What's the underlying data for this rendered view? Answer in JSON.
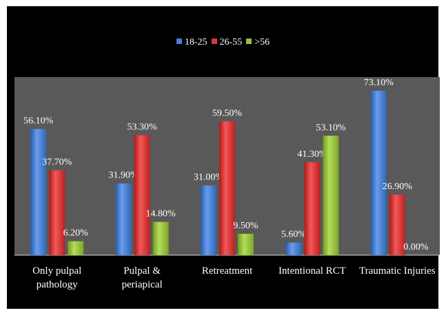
{
  "chart_data": {
    "type": "bar",
    "categories": [
      "Only pulpal pathology",
      "Pulpal & periapical",
      "Retreatment",
      "Intentional RCT",
      "Traumatic Injuries"
    ],
    "category_lines": [
      [
        "Only pulpal",
        "pathology"
      ],
      [
        "Pulpal &",
        "periapical"
      ],
      [
        "Retreatment"
      ],
      [
        "Intentional RCT"
      ],
      [
        "Traumatic Injuries"
      ]
    ],
    "series": [
      {
        "name": "18-25",
        "values": [
          56.1,
          31.9,
          31.0,
          5.6,
          73.1
        ],
        "labels": [
          "56.10%",
          "31.90%",
          "31.00%",
          "5.60%",
          "73.10%"
        ],
        "color": "#4a7fcf"
      },
      {
        "name": "26-55",
        "values": [
          37.7,
          53.3,
          59.5,
          41.3,
          26.9
        ],
        "labels": [
          "37.70%",
          "53.30%",
          "59.50%",
          "41.30%",
          "26.90%"
        ],
        "color": "#d53a3a"
      },
      {
        "name": ">56",
        "values": [
          6.2,
          14.8,
          9.5,
          53.1,
          0.0
        ],
        "labels": [
          "6.20%",
          "14.80%",
          "9.50%",
          "53.10%",
          "0.00%"
        ],
        "color": "#96bf3d"
      }
    ],
    "ylim": [
      0,
      80
    ],
    "legend_position": "top",
    "grid": false,
    "title": "",
    "xlabel": "",
    "ylabel": ""
  }
}
